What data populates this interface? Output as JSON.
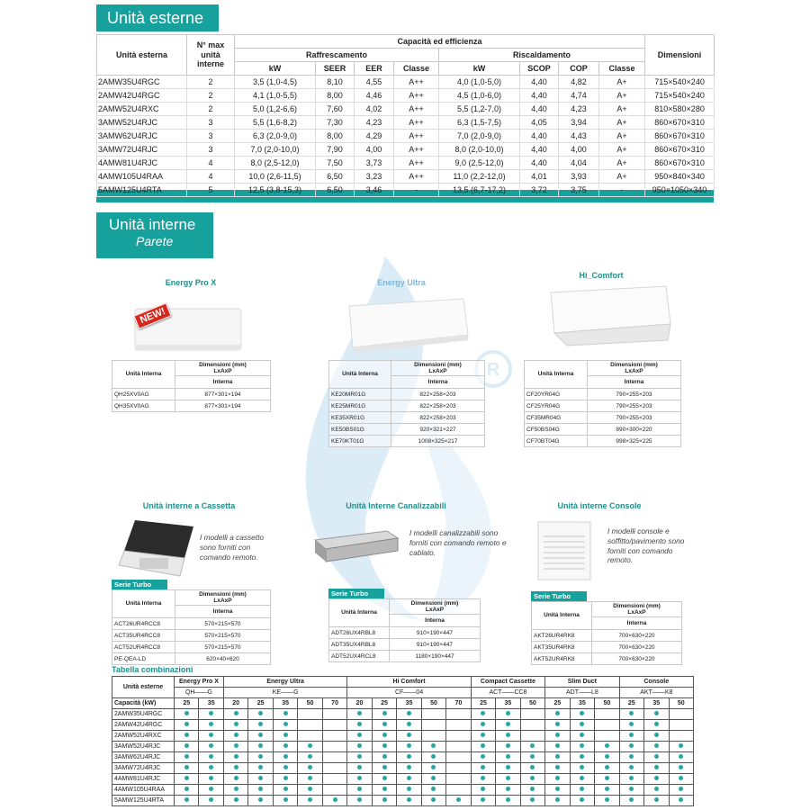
{
  "outdoor": {
    "title": "Unità esterne",
    "headers": {
      "unit": "Unità esterna",
      "max_indoor": "N° max unità interne",
      "capacity": "Capacità ed efficienza",
      "cooling": "Raffrescamento",
      "heating": "Riscaldamento",
      "dimensions": "Dimensioni",
      "cooling_cols": [
        "kW",
        "SEER",
        "EER",
        "Classe"
      ],
      "heating_cols": [
        "kW",
        "SCOP",
        "COP",
        "Classe"
      ]
    },
    "rows": [
      [
        "2AMW35U4RGC",
        "2",
        "3,5 (1,0-4,5)",
        "8,10",
        "4,55",
        "A++",
        "4,0 (1,0-5,0)",
        "4,40",
        "4,82",
        "A+",
        "715×540×240"
      ],
      [
        "2AMW42U4RGC",
        "2",
        "4,1 (1,0-5,5)",
        "8,00",
        "4,46",
        "A++",
        "4,5 (1,0-6,0)",
        "4,40",
        "4,74",
        "A+",
        "715×540×240"
      ],
      [
        "2AMW52U4RXC",
        "2",
        "5,0 (1,2-6,6)",
        "7,60",
        "4,02",
        "A++",
        "5,5 (1,2-7,0)",
        "4,40",
        "4,23",
        "A+",
        "810×580×280"
      ],
      [
        "3AMW52U4RJC",
        "3",
        "5,5 (1,6-8,2)",
        "7,30",
        "4,23",
        "A++",
        "6,3 (1,5-7,5)",
        "4,05",
        "3,94",
        "A+",
        "860×670×310"
      ],
      [
        "3AMW62U4RJC",
        "3",
        "6,3 (2,0-9,0)",
        "8,00",
        "4,29",
        "A++",
        "7,0 (2,0-9,0)",
        "4,40",
        "4,43",
        "A+",
        "860×670×310"
      ],
      [
        "3AMW72U4RJC",
        "3",
        "7,0 (2,0-10,0)",
        "7,90",
        "4,00",
        "A++",
        "8,0 (2,0-10,0)",
        "4,40",
        "4,00",
        "A+",
        "860×670×310"
      ],
      [
        "4AMW81U4RJC",
        "4",
        "8,0 (2,5-12,0)",
        "7,50",
        "3,73",
        "A++",
        "9,0 (2,5-12,0)",
        "4,40",
        "4,04",
        "A+",
        "860×670×310"
      ],
      [
        "4AMW105U4RAA",
        "4",
        "10,0 (2,6-11,5)",
        "6,50",
        "3,23",
        "A++",
        "11,0 (2,2-12,0)",
        "4,01",
        "3,93",
        "A+",
        "950×840×340"
      ],
      [
        "5AMW125U4RTA",
        "5",
        "12,5 (3,8-15,3)",
        "6,50",
        "3,46",
        "-",
        "13,5 (6,7-17,2)",
        "3,72",
        "3,75",
        "-",
        "950×1050×340"
      ]
    ]
  },
  "indoor": {
    "title": "Unità interne",
    "subtitle": "Parete"
  },
  "wall_units": [
    {
      "name": "Energy Pro X",
      "badge": "NEW!",
      "headers": {
        "unit": "Unità Interna",
        "dimensions": "Dimensioni (mm)",
        "format": "LxAxP",
        "sub": "Interna"
      },
      "rows": [
        [
          "QH25XV0AG",
          "877×301×194"
        ],
        [
          "QH35XV0AG",
          "877×301×194"
        ]
      ]
    },
    {
      "name": "Energy Ultra",
      "headers": {
        "unit": "Unità Interna",
        "dimensions": "Dimensioni (mm)",
        "format": "LxAxP",
        "sub": "Interna"
      },
      "rows": [
        [
          "KE20MR01G",
          "822×258×203"
        ],
        [
          "KE25MR01G",
          "822×258×203"
        ],
        [
          "KE35XR01G",
          "822×258×203"
        ],
        [
          "KE50BS01G",
          "920×321×227"
        ],
        [
          "KE70KT01G",
          "1008×325×217"
        ]
      ]
    },
    {
      "name": "Hi_Comfort",
      "headers": {
        "unit": "Unità Interna",
        "dimensions": "Dimensioni (mm)",
        "format": "LxAxP",
        "sub": "Interna"
      },
      "rows": [
        [
          "CF20YR04G",
          "790×255×203"
        ],
        [
          "CF25YR04G",
          "790×255×203"
        ],
        [
          "CF35MR04G",
          "790×255×203"
        ],
        [
          "CF50BS04G",
          "890×300×220"
        ],
        [
          "CF70BT04G",
          "998×325×225"
        ]
      ]
    }
  ],
  "other_units": [
    {
      "name": "Unità interne a Cassetta",
      "description": "I modelli a cassetto sono forniti con comando remoto.",
      "series": "Serie Turbo",
      "headers": {
        "unit": "Unità Interna",
        "dimensions": "Dimensioni (mm)",
        "format": "LxAxP",
        "sub": "Interna"
      },
      "rows": [
        [
          "ACT26UR4RCC8",
          "570×215×570"
        ],
        [
          "ACT35UR4RCC8",
          "570×215×570"
        ],
        [
          "ACT52UR4RCC8",
          "570×215×570"
        ],
        [
          "PE-QEA-LD",
          "620×40×620"
        ]
      ]
    },
    {
      "name": "Unità Interne Canalizzabili",
      "description": "I modelli canalizzabili sono forniti con comando remoto e cablato.",
      "series": "Serie Turbo",
      "headers": {
        "unit": "Unità Interna",
        "dimensions": "Dimensioni (mm)",
        "format": "LxAxP",
        "sub": "Interna"
      },
      "rows": [
        [
          "ADT26UX4RBL8",
          "910×190×447"
        ],
        [
          "ADT35UX4RBL8",
          "910×190×447"
        ],
        [
          "ADT52UX4RCL8",
          "1180×190×447"
        ]
      ]
    },
    {
      "name": "Unità interne Console",
      "description": "I modelli console e soffitto/pavimento sono forniti con comando remoto.",
      "series": "Serie Turbo",
      "headers": {
        "unit": "Unità Interna",
        "dimensions": "Dimensioni (mm)",
        "format": "LxAxP",
        "sub": "Interna"
      },
      "rows": [
        [
          "AKT26UR4RK8",
          "700×630×220"
        ],
        [
          "AKT35UR4RK8",
          "700×630×220"
        ],
        [
          "AKT52UR4RK8",
          "700×630×220"
        ]
      ]
    }
  ],
  "combinations": {
    "title": "Tabella combinazioni",
    "outdoor_header": "Unità esterne",
    "capacity_header": "Capacità (kW)",
    "groups": [
      {
        "name": "Energy Pro X",
        "code": "QH——G",
        "capacities": [
          25,
          35
        ]
      },
      {
        "name": "Energy Ultra",
        "code": "KE——G",
        "capacities": [
          20,
          25,
          35,
          50,
          70
        ]
      },
      {
        "name": "Hi Comfort",
        "code": "CF——04",
        "capacities": [
          20,
          25,
          35,
          50,
          70
        ]
      },
      {
        "name": "Compact Cassette",
        "code": "ACT——CC8",
        "capacities": [
          25,
          35,
          50
        ]
      },
      {
        "name": "Slim Duct",
        "code": "ADT——L8",
        "capacities": [
          25,
          35,
          50
        ]
      },
      {
        "name": "Console",
        "code": "AKT——K8",
        "capacities": [
          25,
          35,
          50
        ]
      }
    ],
    "rows": [
      {
        "unit": "2AMW35U4RGC",
        "available": [
          true,
          true,
          true,
          true,
          true,
          false,
          false,
          true,
          true,
          true,
          false,
          false,
          true,
          true,
          false,
          true,
          true,
          false,
          true,
          true,
          false
        ]
      },
      {
        "unit": "2AMW42U4RGC",
        "available": [
          true,
          true,
          true,
          true,
          true,
          false,
          false,
          true,
          true,
          true,
          false,
          false,
          true,
          true,
          false,
          true,
          true,
          false,
          true,
          true,
          false
        ]
      },
      {
        "unit": "2AMW52U4RXC",
        "available": [
          true,
          true,
          true,
          true,
          true,
          false,
          false,
          true,
          true,
          true,
          false,
          false,
          true,
          true,
          false,
          true,
          true,
          false,
          true,
          true,
          false
        ]
      },
      {
        "unit": "3AMW52U4RJC",
        "available": [
          true,
          true,
          true,
          true,
          true,
          true,
          false,
          true,
          true,
          true,
          true,
          false,
          true,
          true,
          true,
          true,
          true,
          true,
          true,
          true,
          true
        ]
      },
      {
        "unit": "3AMW62U4RJC",
        "available": [
          true,
          true,
          true,
          true,
          true,
          true,
          false,
          true,
          true,
          true,
          true,
          false,
          true,
          true,
          true,
          true,
          true,
          true,
          true,
          true,
          true
        ]
      },
      {
        "unit": "3AMW72U4RJC",
        "available": [
          true,
          true,
          true,
          true,
          true,
          true,
          false,
          true,
          true,
          true,
          true,
          false,
          true,
          true,
          true,
          true,
          true,
          true,
          true,
          true,
          true
        ]
      },
      {
        "unit": "4AMW81U4RJC",
        "available": [
          true,
          true,
          true,
          true,
          true,
          true,
          false,
          true,
          true,
          true,
          true,
          false,
          true,
          true,
          true,
          true,
          true,
          true,
          true,
          true,
          true
        ]
      },
      {
        "unit": "4AMW105U4RAA",
        "available": [
          true,
          true,
          true,
          true,
          true,
          true,
          false,
          true,
          true,
          true,
          true,
          false,
          true,
          true,
          true,
          true,
          true,
          true,
          true,
          true,
          true
        ]
      },
      {
        "unit": "5AMW125U4RTA",
        "available": [
          true,
          true,
          true,
          true,
          true,
          true,
          true,
          true,
          true,
          true,
          true,
          true,
          true,
          true,
          true,
          true,
          true,
          true,
          true,
          true,
          true
        ]
      }
    ]
  }
}
